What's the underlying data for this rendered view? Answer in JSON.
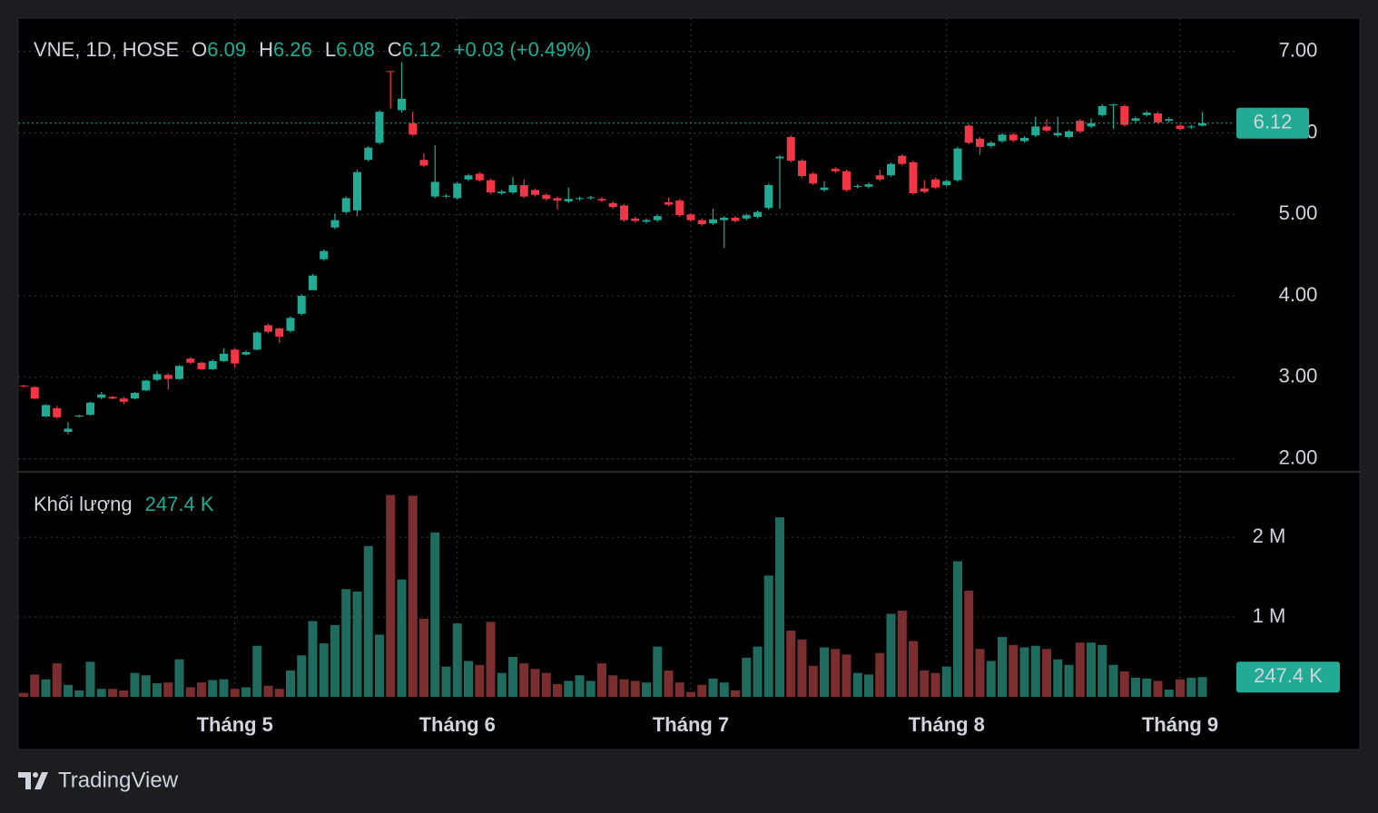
{
  "chart_data": {
    "type": "candlestick",
    "legend": {
      "symbol": "VNE, 1D, HOSE",
      "o": "O",
      "h": "H",
      "l": "L",
      "c": "C",
      "change": "+0.03 (+0.49%)"
    },
    "volume_title": "Khối lượng",
    "volume_last_label": "247.4 K",
    "categories": [
      null,
      null,
      null,
      null,
      null,
      null,
      null,
      null,
      null,
      null,
      null,
      null,
      null,
      null,
      null,
      null,
      null,
      null,
      null,
      "Tháng 5",
      null,
      null,
      null,
      null,
      null,
      null,
      null,
      null,
      null,
      null,
      null,
      null,
      null,
      null,
      null,
      null,
      null,
      null,
      null,
      "Tháng 6",
      null,
      null,
      null,
      null,
      null,
      null,
      null,
      null,
      null,
      null,
      null,
      null,
      null,
      null,
      null,
      null,
      null,
      null,
      null,
      null,
      "Tháng 7",
      null,
      null,
      null,
      null,
      null,
      null,
      null,
      null,
      null,
      null,
      null,
      null,
      null,
      null,
      null,
      null,
      null,
      null,
      null,
      null,
      null,
      null,
      "Tháng 8",
      null,
      null,
      null,
      null,
      null,
      null,
      null,
      null,
      null,
      null,
      null,
      null,
      null,
      null,
      null,
      null,
      null,
      null,
      null,
      null,
      "Tháng 9",
      null,
      null
    ],
    "open": [
      2.9,
      2.88,
      2.52,
      2.62,
      2.33,
      2.52,
      2.54,
      2.75,
      2.76,
      2.74,
      2.74,
      2.84,
      2.97,
      3.03,
      2.98,
      3.23,
      3.18,
      3.1,
      3.2,
      3.34,
      3.28,
      3.34,
      3.64,
      3.6,
      3.57,
      3.78,
      4.07,
      4.45,
      4.84,
      5.03,
      5.05,
      5.67,
      5.88,
      6.76,
      6.28,
      6.12,
      5.67,
      5.22,
      5.22,
      5.2,
      5.43,
      5.5,
      5.42,
      5.26,
      5.27,
      5.36,
      5.3,
      5.24,
      5.2,
      5.16,
      5.19,
      5.2,
      5.19,
      5.14,
      5.11,
      4.95,
      4.91,
      4.93,
      5.15,
      5.17,
      5.0,
      4.93,
      4.89,
      4.93,
      4.96,
      4.95,
      4.97,
      5.08,
      5.69,
      5.95,
      5.66,
      5.5,
      5.3,
      5.56,
      5.53,
      5.34,
      5.34,
      5.48,
      5.48,
      5.72,
      5.64,
      5.32,
      5.43,
      5.36,
      5.42,
      6.09,
      5.93,
      5.84,
      5.9,
      5.98,
      5.9,
      5.97,
      6.08,
      5.97,
      5.95,
      6.15,
      6.08,
      6.22,
      6.35,
      6.33,
      6.15,
      6.22,
      6.24,
      6.15,
      6.09,
      6.07,
      6.09
    ],
    "high": [
      2.91,
      2.89,
      2.67,
      2.65,
      2.45,
      2.54,
      2.7,
      2.82,
      2.77,
      2.76,
      2.82,
      2.97,
      3.08,
      3.05,
      3.15,
      3.25,
      3.19,
      3.22,
      3.36,
      3.36,
      3.33,
      3.57,
      3.66,
      3.61,
      3.75,
      4.02,
      4.27,
      4.57,
      5.01,
      5.22,
      5.55,
      5.84,
      6.28,
      6.76,
      6.87,
      6.26,
      5.75,
      5.85,
      5.25,
      5.4,
      5.5,
      5.52,
      5.44,
      5.3,
      5.46,
      5.43,
      5.32,
      5.26,
      5.22,
      5.33,
      5.22,
      5.23,
      5.21,
      5.16,
      5.13,
      4.97,
      4.95,
      5.0,
      5.21,
      5.19,
      5.02,
      4.95,
      5.07,
      4.98,
      4.98,
      5.01,
      5.05,
      5.38,
      5.73,
      5.97,
      5.68,
      5.52,
      5.41,
      5.58,
      5.55,
      5.37,
      5.39,
      5.55,
      5.64,
      5.74,
      5.66,
      5.42,
      5.45,
      5.43,
      5.83,
      6.11,
      5.95,
      5.9,
      6.0,
      6.0,
      5.96,
      6.2,
      6.17,
      6.2,
      6.04,
      6.17,
      6.18,
      6.35,
      6.36,
      6.35,
      6.2,
      6.27,
      6.26,
      6.19,
      6.11,
      6.1,
      6.26
    ],
    "low": [
      2.88,
      2.73,
      2.51,
      2.49,
      2.3,
      2.51,
      2.53,
      2.73,
      2.73,
      2.67,
      2.73,
      2.83,
      2.95,
      2.85,
      2.97,
      3.16,
      3.09,
      3.09,
      3.19,
      3.12,
      3.27,
      3.33,
      3.54,
      3.42,
      3.55,
      3.76,
      4.12,
      4.43,
      4.82,
      5.01,
      4.98,
      5.65,
      5.86,
      6.3,
      6.25,
      5.96,
      5.58,
      5.2,
      5.2,
      5.18,
      5.41,
      5.4,
      5.25,
      5.24,
      5.25,
      5.2,
      5.22,
      5.17,
      5.06,
      5.14,
      5.17,
      5.18,
      5.15,
      5.07,
      4.91,
      4.9,
      4.89,
      4.91,
      5.1,
      4.97,
      4.91,
      4.86,
      4.87,
      4.59,
      4.9,
      4.93,
      4.95,
      5.06,
      5.07,
      5.64,
      5.45,
      5.36,
      5.28,
      5.51,
      5.28,
      5.32,
      5.32,
      5.41,
      5.46,
      5.6,
      5.24,
      5.26,
      5.31,
      5.34,
      5.4,
      5.86,
      5.73,
      5.82,
      5.88,
      5.89,
      5.88,
      5.95,
      6.01,
      5.95,
      5.93,
      6.0,
      6.06,
      6.2,
      6.05,
      6.08,
      6.13,
      6.2,
      6.11,
      6.13,
      6.03,
      6.05,
      6.08
    ],
    "close": [
      2.89,
      2.74,
      2.66,
      2.51,
      2.37,
      2.53,
      2.69,
      2.79,
      2.74,
      2.7,
      2.81,
      2.96,
      3.04,
      2.98,
      3.14,
      3.18,
      3.1,
      3.2,
      3.29,
      3.17,
      3.31,
      3.55,
      3.56,
      3.5,
      3.73,
      4.0,
      4.25,
      4.55,
      4.93,
      5.2,
      5.52,
      5.82,
      6.26,
      6.75,
      6.42,
      5.98,
      5.6,
      5.4,
      5.23,
      5.38,
      5.48,
      5.42,
      5.27,
      5.28,
      5.36,
      5.22,
      5.24,
      5.19,
      5.17,
      5.19,
      5.2,
      5.21,
      5.17,
      5.09,
      4.93,
      4.92,
      4.93,
      4.98,
      5.12,
      4.99,
      4.93,
      4.88,
      4.94,
      4.96,
      4.92,
      4.99,
      5.03,
      5.36,
      5.71,
      5.66,
      5.47,
      5.38,
      5.33,
      5.53,
      5.3,
      5.35,
      5.37,
      5.43,
      5.62,
      5.62,
      5.26,
      5.28,
      5.33,
      5.41,
      5.81,
      5.88,
      5.83,
      5.88,
      5.98,
      5.91,
      5.94,
      6.08,
      6.03,
      6.0,
      6.02,
      6.02,
      6.12,
      6.33,
      6.35,
      6.1,
      6.18,
      6.25,
      6.13,
      6.17,
      6.05,
      6.08,
      6.12
    ],
    "volume": [
      50000,
      280000,
      220000,
      420000,
      150000,
      80000,
      440000,
      100000,
      100000,
      80000,
      300000,
      270000,
      170000,
      180000,
      470000,
      120000,
      180000,
      210000,
      220000,
      100000,
      120000,
      640000,
      140000,
      100000,
      330000,
      520000,
      950000,
      670000,
      900000,
      1350000,
      1320000,
      1890000,
      780000,
      2530000,
      1470000,
      2520000,
      980000,
      2060000,
      380000,
      920000,
      450000,
      400000,
      940000,
      300000,
      500000,
      420000,
      350000,
      300000,
      160000,
      200000,
      270000,
      200000,
      420000,
      270000,
      220000,
      200000,
      180000,
      630000,
      330000,
      180000,
      60000,
      150000,
      230000,
      180000,
      80000,
      490000,
      630000,
      1520000,
      2250000,
      830000,
      720000,
      390000,
      620000,
      600000,
      530000,
      300000,
      280000,
      550000,
      1040000,
      1080000,
      700000,
      330000,
      300000,
      380000,
      1700000,
      1330000,
      600000,
      450000,
      750000,
      650000,
      620000,
      640000,
      600000,
      470000,
      400000,
      680000,
      680000,
      650000,
      400000,
      320000,
      240000,
      230000,
      200000,
      90000,
      220000,
      240000,
      247400
    ],
    "up_color": "#22ab94",
    "down_color": "#f23645",
    "volume_up_color": "#1f6b5d",
    "volume_down_color": "#7b2e30",
    "ylim": [
      1.84,
      7.41
    ],
    "yticks": [
      {
        "value": 2,
        "label": "2.00"
      },
      {
        "value": 3,
        "label": "3.00"
      },
      {
        "value": 4,
        "label": "4.00"
      },
      {
        "value": 5,
        "label": "5.00"
      },
      {
        "value": 6,
        "label": "6.00"
      },
      {
        "value": 7,
        "label": "7.00"
      }
    ],
    "volume_ylim": [
      0,
      2820000
    ],
    "volume_yticks": [
      {
        "value": 1000000,
        "label": "1 M"
      },
      {
        "value": 2000000,
        "label": "2 M"
      }
    ],
    "grid": true
  },
  "footer": {
    "brand": "TradingView"
  }
}
